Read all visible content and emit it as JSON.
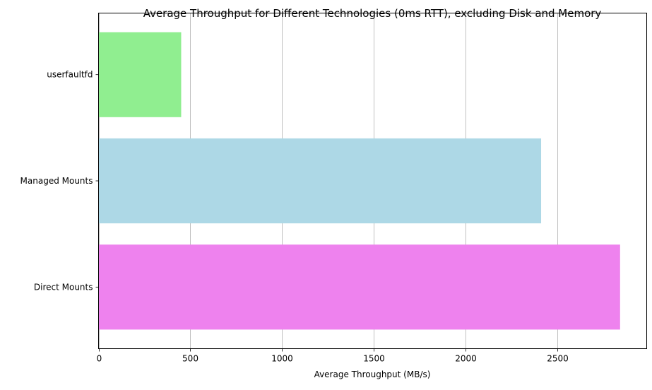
{
  "chart_data": {
    "type": "bar",
    "orientation": "horizontal",
    "title": "Average Throughput for Different Technologies (0ms RTT), excluding Disk and Memory",
    "xlabel": "Average Throughput (MB/s)",
    "ylabel": "",
    "categories": [
      "Direct Mounts",
      "Managed Mounts",
      "userfaultfd"
    ],
    "values": [
      2840,
      2410,
      450
    ],
    "colors": [
      "#EE82EE",
      "#ADD8E6",
      "#90EE90"
    ],
    "xlim": [
      0,
      2985
    ],
    "xticks": [
      0,
      500,
      1000,
      1500,
      2000,
      2500
    ],
    "grid": "x-major"
  }
}
